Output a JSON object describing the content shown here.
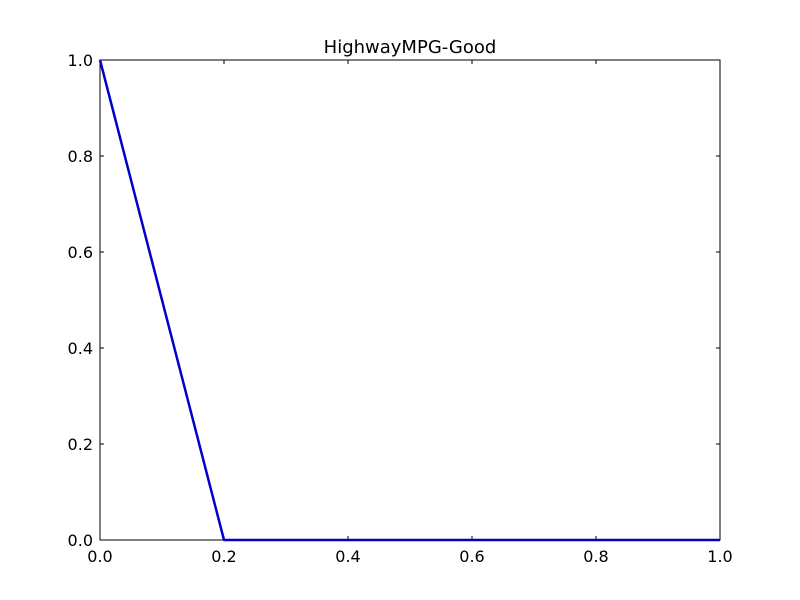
{
  "chart_data": {
    "type": "line",
    "title": "HighwayMPG-Good",
    "xlabel": "",
    "ylabel": "",
    "xlim": [
      0.0,
      1.0
    ],
    "ylim": [
      0.0,
      1.0
    ],
    "x_ticks": [
      0.0,
      0.2,
      0.4,
      0.6,
      0.8,
      1.0
    ],
    "x_tick_labels": [
      "0.0",
      "0.2",
      "0.4",
      "0.6",
      "0.8",
      "1.0"
    ],
    "y_ticks": [
      0.0,
      0.2,
      0.4,
      0.6,
      0.8,
      1.0
    ],
    "y_tick_labels": [
      "0.0",
      "0.2",
      "0.4",
      "0.6",
      "0.8",
      "1.0"
    ],
    "grid": false,
    "legend": "none",
    "series": [
      {
        "color": "#0000cc",
        "x": [
          0.0,
          0.2,
          1.0
        ],
        "y": [
          1.0,
          0.0,
          0.0
        ]
      }
    ]
  }
}
